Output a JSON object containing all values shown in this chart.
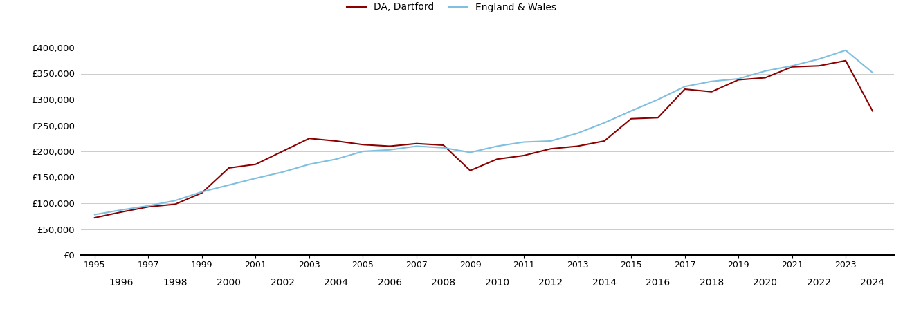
{
  "dartford_years": [
    1995,
    1996,
    1997,
    1998,
    1999,
    2000,
    2001,
    2002,
    2003,
    2004,
    2005,
    2006,
    2007,
    2008,
    2009,
    2010,
    2011,
    2012,
    2013,
    2014,
    2015,
    2016,
    2017,
    2018,
    2019,
    2020,
    2021,
    2022,
    2023,
    2024
  ],
  "dartford_values": [
    72000,
    83000,
    93000,
    98000,
    120000,
    168000,
    175000,
    200000,
    225000,
    220000,
    213000,
    210000,
    215000,
    212000,
    163000,
    185000,
    192000,
    205000,
    210000,
    220000,
    263000,
    265000,
    320000,
    315000,
    338000,
    342000,
    363000,
    365000,
    375000,
    278000
  ],
  "ew_years": [
    1995,
    1996,
    1997,
    1998,
    1999,
    2000,
    2001,
    2002,
    2003,
    2004,
    2005,
    2006,
    2007,
    2008,
    2009,
    2010,
    2011,
    2012,
    2013,
    2014,
    2015,
    2016,
    2017,
    2018,
    2019,
    2020,
    2021,
    2022,
    2023,
    2024
  ],
  "ew_values": [
    78000,
    87000,
    95000,
    105000,
    122000,
    135000,
    148000,
    160000,
    175000,
    185000,
    200000,
    203000,
    210000,
    207000,
    198000,
    210000,
    218000,
    220000,
    235000,
    255000,
    278000,
    300000,
    325000,
    335000,
    340000,
    355000,
    365000,
    378000,
    395000,
    352000
  ],
  "dartford_color": "#8B0000",
  "ew_color": "#7fbfdf",
  "dartford_label": "DA, Dartford",
  "ew_label": "England & Wales",
  "ylim": [
    0,
    420000
  ],
  "yticks": [
    0,
    50000,
    100000,
    150000,
    200000,
    250000,
    300000,
    350000,
    400000
  ],
  "xlim_left": 1994.5,
  "xlim_right": 2024.8,
  "background_color": "#ffffff",
  "grid_color": "#cccccc",
  "odd_years": [
    1995,
    1997,
    1999,
    2001,
    2003,
    2005,
    2007,
    2009,
    2011,
    2013,
    2015,
    2017,
    2019,
    2021,
    2023
  ],
  "even_years": [
    1996,
    1998,
    2000,
    2002,
    2004,
    2006,
    2008,
    2010,
    2012,
    2014,
    2016,
    2018,
    2020,
    2022,
    2024
  ]
}
